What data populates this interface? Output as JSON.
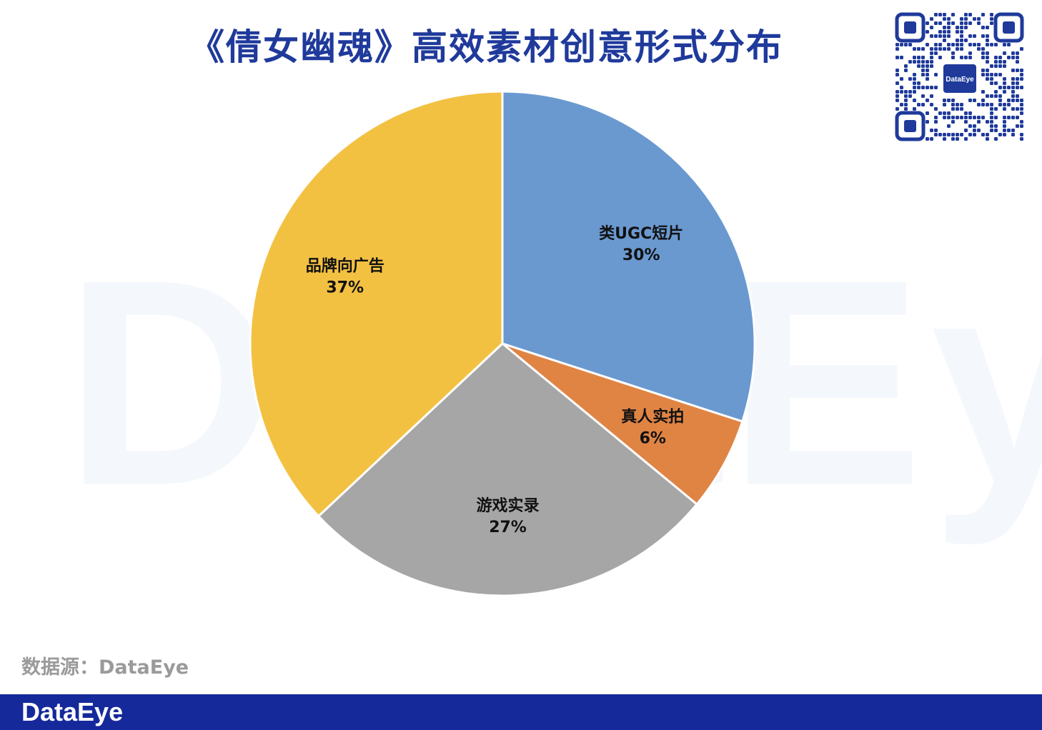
{
  "title": "《倩女幽魂》高效素材创意形式分布",
  "watermark_text": "DataEye",
  "qr_center_label": "DataEye",
  "source_text": "数据源：DataEye",
  "footer_logo": "DataEye",
  "colors": {
    "title": "#1f3a9b",
    "footer_bg": "#15299b",
    "source_text": "#9a9a9a",
    "qr": "#1f3a9b"
  },
  "chart_data": {
    "type": "pie",
    "start_angle_deg": 0,
    "direction": "clockwise",
    "slices": [
      {
        "label": "类UGC短片",
        "value": 30,
        "display": "30%",
        "color": "#6a99d0"
      },
      {
        "label": "真人实拍",
        "value": 6,
        "display": "6%",
        "color": "#e08444"
      },
      {
        "label": "游戏实录",
        "value": 27,
        "display": "27%",
        "color": "#a6a6a6"
      },
      {
        "label": "品牌向广告",
        "value": 37,
        "display": "37%",
        "color": "#f3c142"
      }
    ]
  }
}
